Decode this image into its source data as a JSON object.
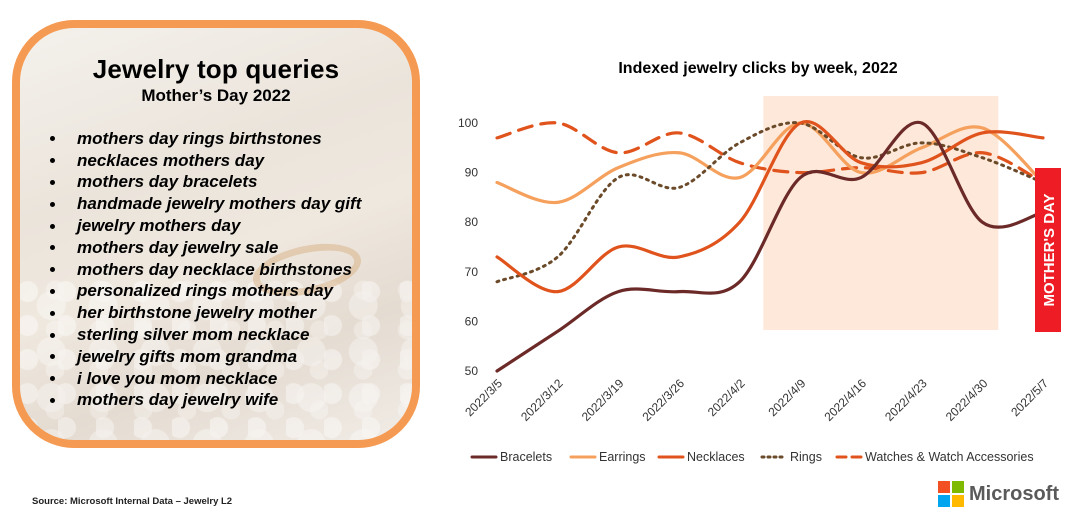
{
  "card": {
    "title": "Jewelry top queries",
    "subtitle": "Mother’s Day 2022",
    "queries": [
      "mothers day rings birthstones",
      "necklaces mothers day",
      "mothers day bracelets",
      "handmade jewelry mothers day gift",
      "jewelry mothers day",
      "mothers day jewelry sale",
      "mothers day necklace birthstones",
      "personalized rings mothers day",
      "her birthstone jewelry mother",
      "sterling silver mom necklace",
      "jewelry gifts mom grandma",
      "i love you mom necklace",
      "mothers day jewelry wife"
    ]
  },
  "chart_data": {
    "type": "line",
    "title": "Indexed jewelry clicks by week, 2022",
    "xlabel": "",
    "ylabel": "",
    "ylim": [
      50,
      100
    ],
    "yticks": [
      50,
      60,
      70,
      80,
      90,
      100
    ],
    "categories": [
      "2022/3/5",
      "2022/3/12",
      "2022/3/19",
      "2022/3/26",
      "2022/4/2",
      "2022/4/9",
      "2022/4/16",
      "2022/4/23",
      "2022/4/30",
      "2022/5/7"
    ],
    "highlight_range": [
      "2022/4/9",
      "2022/4/30"
    ],
    "annotation": "MOTHER'S DAY",
    "legend_position": "bottom",
    "series": [
      {
        "name": "Bracelets",
        "color": "#6b2a28",
        "style": "solid",
        "values": [
          50,
          58,
          66,
          66,
          68,
          89,
          89,
          100,
          80,
          82
        ]
      },
      {
        "name": "Earrings",
        "color": "#f5a05c",
        "style": "solid",
        "values": [
          88,
          84,
          91,
          94,
          89,
          100,
          90,
          95,
          99,
          88
        ]
      },
      {
        "name": "Necklaces",
        "color": "#e0531c",
        "style": "solid",
        "values": [
          73,
          66,
          75,
          73,
          80,
          100,
          92,
          92,
          98,
          97
        ]
      },
      {
        "name": "Rings",
        "color": "#6b4a2a",
        "style": "dotted",
        "values": [
          68,
          73,
          89,
          87,
          96,
          100,
          93,
          96,
          93,
          88
        ]
      },
      {
        "name": "Watches & Watch Accessories",
        "color": "#e0531c",
        "style": "dashed",
        "values": [
          97,
          100,
          94,
          98,
          92,
          90,
          91,
          90,
          94,
          88
        ]
      }
    ]
  },
  "footer": {
    "source": "Source: Microsoft Internal Data – Jewelry L2",
    "brand": "Microsoft",
    "brand_colors": [
      "#f25022",
      "#7fba00",
      "#00a4ef",
      "#ffb900"
    ]
  }
}
